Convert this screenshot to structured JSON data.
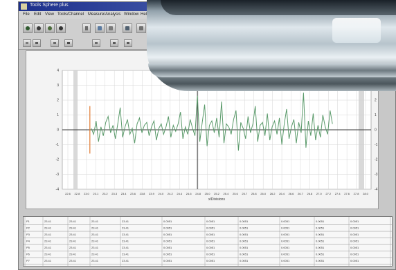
{
  "window": {
    "title": "Tools Sphere plus"
  },
  "menubar": {
    "items": [
      "File",
      "Edit",
      "View",
      "Tools/Channel",
      "Measure/Analysis",
      "Window",
      "Help"
    ]
  },
  "toolbar": {
    "top_icons": [
      "save-icon",
      "open-icon",
      "print-icon",
      "settings-icon",
      "disk-icon"
    ],
    "second_icons": [
      "grid-icon",
      "zoom-icon",
      "export-icon",
      "table-icon",
      "tile-icon"
    ]
  },
  "chart_data": {
    "type": "line",
    "title": "",
    "xlabel": "x/Divisions",
    "ylabel": "",
    "xlim": [
      22.4,
      28.8
    ],
    "ylim": [
      -4,
      4
    ],
    "x_ticks": [
      "22.6",
      "22.8",
      "23.0",
      "23.1",
      "23.2",
      "23.3",
      "23.4",
      "23.6",
      "23.8",
      "23.9",
      "24.0",
      "24.2",
      "24.4",
      "24.6",
      "24.8",
      "25.0",
      "25.2",
      "25.4",
      "25.6",
      "25.7",
      "25.8",
      "26.0",
      "26.2",
      "26.4",
      "26.6",
      "26.7",
      "26.8",
      "27.0",
      "27.2",
      "27.4",
      "27.6",
      "27.8",
      "28.0"
    ],
    "y_ticks": [
      "4",
      "3",
      "2",
      "1",
      "0",
      "-1",
      "-2",
      "-3",
      "-4"
    ],
    "grid": true,
    "legend": "none",
    "colors": {
      "series": "#5a9a6a",
      "baseline": "#3a3a3a",
      "marker": "#e07a30",
      "background": "#ffffff"
    },
    "series": [
      {
        "x": [
          23.0,
          23.05,
          23.1,
          23.15,
          23.2,
          23.25,
          23.3,
          23.35,
          23.4,
          23.45,
          23.5,
          23.55,
          23.6,
          23.65,
          23.7,
          23.75,
          23.8,
          23.85,
          23.9,
          23.95,
          24.0,
          24.05,
          24.1,
          24.15,
          24.2,
          24.25,
          24.3,
          24.35,
          24.4,
          24.45,
          24.5,
          24.55,
          24.6,
          24.65,
          24.7,
          24.75,
          24.8,
          24.85,
          24.9,
          24.95,
          25.0,
          25.05,
          25.1,
          25.15,
          25.2,
          25.25,
          25.3,
          25.35,
          25.4,
          25.45,
          25.5,
          25.55,
          25.6,
          25.65,
          25.7,
          25.75,
          25.8,
          25.85,
          25.9,
          25.95,
          26.0,
          26.05,
          26.1,
          26.15,
          26.2,
          26.25,
          26.3,
          26.35,
          26.4,
          26.45,
          26.5,
          26.55,
          26.6,
          26.65,
          26.7,
          26.75,
          26.8,
          26.85,
          26.9,
          26.95,
          27.0,
          27.05,
          27.1,
          27.15,
          27.2,
          27.25,
          27.3,
          27.35,
          27.4,
          27.45,
          27.5,
          27.55,
          27.6,
          27.65,
          27.7,
          27.75,
          27.8,
          27.85,
          27.9,
          27.95,
          28.0
        ],
        "values": [
          0.1,
          -0.3,
          0.6,
          -0.8,
          0.2,
          -0.4,
          0.5,
          0.9,
          -0.2,
          0.3,
          -0.6,
          0.4,
          1.5,
          -0.5,
          0.2,
          0.7,
          -0.3,
          0.1,
          -0.9,
          0.4,
          0.8,
          -0.2,
          0.3,
          0.5,
          -0.4,
          0.2,
          0.6,
          -0.7,
          0.1,
          0.4,
          -0.3,
          0.2,
          0.9,
          -0.5,
          0.3,
          -0.1,
          0.4,
          1.2,
          -0.6,
          0.2,
          -0.3,
          0.7,
          0.1,
          -0.4,
          2.3,
          -0.8,
          0.5,
          1.7,
          -1.1,
          0.3,
          0.6,
          -0.2,
          0.8,
          -0.5,
          1.9,
          -0.9,
          0.4,
          0.2,
          -0.3,
          0.7,
          1.3,
          -1.4,
          0.5,
          0.1,
          -0.6,
          0.9,
          -0.2,
          0.4,
          1.6,
          -0.8,
          0.3,
          0.5,
          -0.4,
          1.1,
          -0.7,
          0.2,
          0.6,
          -0.3,
          0.8,
          -1.0,
          0.4,
          1.4,
          -0.6,
          0.2,
          0.7,
          -0.9,
          0.5,
          -0.2,
          2.5,
          -1.2,
          0.6,
          -0.4,
          1.1,
          -0.7,
          0.3,
          -0.5,
          1.0,
          0.2,
          -0.3,
          1.3,
          0.4
        ]
      }
    ]
  },
  "results": {
    "rows": [
      [
        "P1",
        "23.41",
        "23.41",
        "23.41",
        "23.41",
        "0.0051",
        "0.0051",
        "0.0051",
        "0.0051",
        "0.0051",
        "0.0051"
      ],
      [
        "P2",
        "23.41",
        "23.41",
        "23.41",
        "23.41",
        "0.0051",
        "0.0051",
        "0.0051",
        "0.0051",
        "0.0051",
        "0.0051"
      ],
      [
        "P3",
        "23.41",
        "23.41",
        "23.41",
        "23.41",
        "0.0051",
        "0.0051",
        "0.0051",
        "0.0051",
        "0.0051",
        "0.0051"
      ],
      [
        "P4",
        "23.41",
        "23.41",
        "23.41",
        "23.41",
        "0.0051",
        "0.0051",
        "0.0051",
        "0.0051",
        "0.0051",
        "0.0051"
      ],
      [
        "P5",
        "23.41",
        "23.41",
        "23.41",
        "23.41",
        "0.0051",
        "0.0051",
        "0.0051",
        "0.0051",
        "0.0051",
        "0.0051"
      ],
      [
        "P6",
        "23.41",
        "23.41",
        "23.41",
        "23.41",
        "0.0051",
        "0.0051",
        "0.0051",
        "0.0051",
        "0.0051",
        "0.0051"
      ],
      [
        "P7",
        "23.41",
        "23.41",
        "23.41",
        "23.41",
        "0.0051",
        "0.0051",
        "0.0051",
        "0.0051",
        "0.0051",
        "0.0051"
      ]
    ]
  }
}
